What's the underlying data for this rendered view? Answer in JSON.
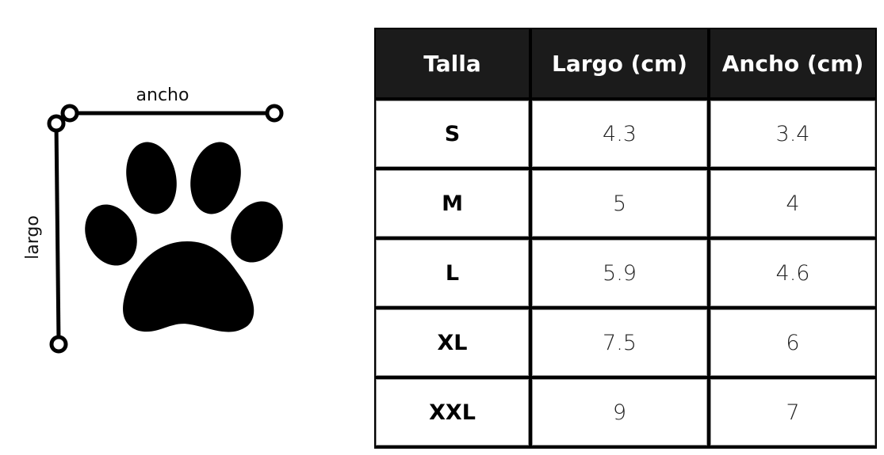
{
  "diagram": {
    "width_label": "ancho",
    "length_label": "largo",
    "icon": "paw-print-icon"
  },
  "table": {
    "headers": [
      "Talla",
      "Largo (cm)",
      "Ancho (cm)"
    ],
    "rows": [
      [
        "S",
        "4.3",
        "3.4"
      ],
      [
        "M",
        "5",
        "4"
      ],
      [
        "L",
        "5.9",
        "4.6"
      ],
      [
        "XL",
        "7.5",
        "6"
      ],
      [
        "XXL",
        "9",
        "7"
      ]
    ]
  },
  "colors": {
    "header_bg": "#1b1b1b",
    "header_text": "#ffffff",
    "border": "#000000"
  }
}
